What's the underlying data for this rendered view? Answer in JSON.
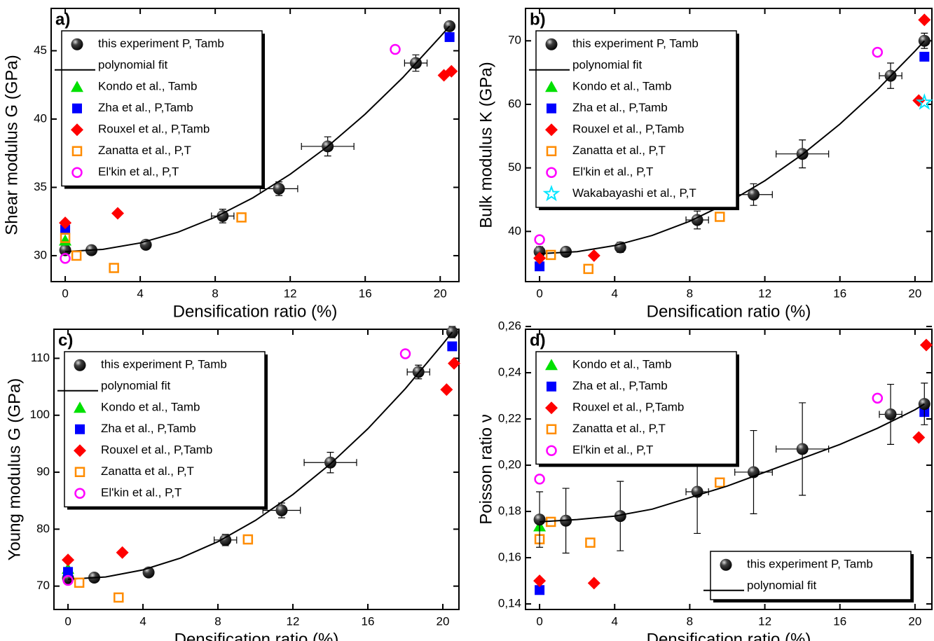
{
  "chart_data": [
    {
      "type": "scatter",
      "title": "a)",
      "xlabel": "Densification ratio (%)",
      "ylabel": "Shear modulus G (GPa)",
      "xlim": [
        -0.75,
        21.0
      ],
      "ylim": [
        28.1,
        48.1
      ],
      "xticks": [
        0,
        4,
        8,
        12,
        16,
        20
      ],
      "yticks": [
        30,
        35,
        40,
        45
      ],
      "legend": "upper left",
      "series": [
        {
          "name": "this experiment P, Tamb",
          "marker": "sphere",
          "color": "#000000",
          "x": [
            0,
            1.4,
            4.3,
            8.4,
            11.4,
            14.0,
            18.7,
            20.5
          ],
          "values": [
            30.4,
            30.4,
            30.8,
            32.9,
            34.9,
            38.0,
            44.1,
            46.8
          ],
          "errors": [
            0.3,
            0.3,
            0.3,
            0.5,
            0.5,
            0.7,
            0.6,
            0.3
          ],
          "xerrors": [
            null,
            null,
            null,
            0.6,
            1.0,
            1.4,
            0.6,
            null
          ]
        },
        {
          "name": "polynomial fit",
          "marker": "line",
          "color": "#000000",
          "x": [
            0,
            2,
            4,
            6,
            8,
            10,
            12,
            14,
            16,
            18,
            20,
            20.5
          ],
          "values": [
            30.3,
            30.46,
            30.93,
            31.71,
            32.82,
            34.23,
            35.96,
            38.0,
            40.36,
            43.03,
            46.02,
            46.8
          ]
        },
        {
          "name": "Kondo et al., Tamb",
          "marker": "triangle",
          "color": "#00e000",
          "x": [
            0
          ],
          "values": [
            31.1
          ]
        },
        {
          "name": "Zha et al., P,Tamb",
          "marker": "square",
          "color": "#0000ff",
          "x": [
            0,
            20.5
          ],
          "values": [
            31.9,
            46.0
          ]
        },
        {
          "name": "Rouxel et al., P,Tamb",
          "marker": "diamond",
          "color": "#ff0000",
          "x": [
            0,
            2.8,
            20.2,
            20.6
          ],
          "values": [
            32.4,
            33.1,
            43.2,
            43.5
          ]
        },
        {
          "name": "Zanatta et al., P,T",
          "marker": "open-square",
          "color": "#ff8c00",
          "x": [
            0,
            0.6,
            2.6,
            9.4
          ],
          "values": [
            31.3,
            30.0,
            29.1,
            32.8
          ]
        },
        {
          "name": "El'kin et al., P,T",
          "marker": "open-circle",
          "color": "#ff00ff",
          "x": [
            0,
            17.6
          ],
          "values": [
            29.8,
            45.1
          ]
        }
      ]
    },
    {
      "type": "scatter",
      "title": "b)",
      "xlabel": "Densification ratio (%)",
      "ylabel": "Bulk modulus K (GPa)",
      "xlim": [
        -0.75,
        20.9
      ],
      "ylim": [
        32.1,
        75.1
      ],
      "xticks": [
        0,
        4,
        8,
        12,
        16,
        20
      ],
      "yticks": [
        40,
        50,
        60,
        70
      ],
      "legend": "upper left",
      "series": [
        {
          "name": "this experiment P, Tamb",
          "marker": "sphere",
          "color": "#000000",
          "x": [
            0,
            1.4,
            4.3,
            8.4,
            11.4,
            14.0,
            18.7,
            20.5
          ],
          "values": [
            36.8,
            36.8,
            37.5,
            41.8,
            45.8,
            52.2,
            64.5,
            70.0
          ],
          "errors": [
            0.8,
            0.6,
            0.8,
            1.4,
            1.7,
            2.2,
            2.0,
            1.2
          ],
          "xerrors": [
            null,
            null,
            null,
            0.6,
            1.0,
            1.4,
            0.6,
            null
          ]
        },
        {
          "name": "polynomial fit",
          "marker": "line",
          "color": "#000000",
          "x": [
            0,
            2,
            4,
            6,
            8,
            10,
            12,
            14,
            16,
            18,
            20,
            20.5
          ],
          "values": [
            36.5,
            36.82,
            37.78,
            39.37,
            41.6,
            44.47,
            47.98,
            52.12,
            56.9,
            62.32,
            68.38,
            70.0
          ]
        },
        {
          "name": "Kondo et al., Tamb",
          "marker": "triangle",
          "color": "#00e000",
          "x": [],
          "values": []
        },
        {
          "name": "Zha et al., P,Tamb",
          "marker": "square",
          "color": "#0000ff",
          "x": [
            0,
            20.5
          ],
          "values": [
            34.5,
            67.5
          ]
        },
        {
          "name": "Rouxel et al., P,Tamb",
          "marker": "diamond",
          "color": "#ff0000",
          "x": [
            0,
            2.9,
            20.2,
            20.5
          ],
          "values": [
            35.8,
            36.2,
            60.6,
            73.3
          ]
        },
        {
          "name": "Zanatta et al., P,T",
          "marker": "open-square",
          "color": "#ff8c00",
          "x": [
            0.6,
            2.6,
            9.6
          ],
          "values": [
            36.3,
            34.1,
            42.3
          ]
        },
        {
          "name": "El'kin et al., P,T",
          "marker": "open-circle",
          "color": "#ff00ff",
          "x": [
            0,
            18.0
          ],
          "values": [
            38.7,
            68.2
          ]
        },
        {
          "name": "Wakabayashi et al., P,T",
          "marker": "star",
          "color": "#00e5ff",
          "x": [
            20.5
          ],
          "values": [
            60.3
          ]
        }
      ]
    },
    {
      "type": "scatter",
      "title": "c)",
      "xlabel": "Densification ratio (%)",
      "ylabel": "Young modulus G (GPa)",
      "xlim": [
        -0.75,
        20.86
      ],
      "ylim": [
        65.9,
        115.1
      ],
      "xticks": [
        0,
        4,
        8,
        12,
        16,
        20
      ],
      "yticks": [
        70,
        80,
        90,
        100,
        110
      ],
      "legend": "upper left",
      "series": [
        {
          "name": "this experiment P, Tamb",
          "marker": "sphere",
          "color": "#000000",
          "x": [
            0,
            1.4,
            4.3,
            8.4,
            11.4,
            14.0,
            18.7,
            20.5
          ],
          "values": [
            71.4,
            71.5,
            72.4,
            78.1,
            83.3,
            91.7,
            107.6,
            114.6
          ],
          "errors": [
            0.8,
            0.6,
            0.6,
            1.0,
            1.3,
            1.8,
            1.2,
            1.0
          ],
          "xerrors": [
            null,
            null,
            null,
            0.6,
            1.0,
            1.4,
            0.6,
            null
          ]
        },
        {
          "name": "polynomial fit",
          "marker": "line",
          "color": "#000000",
          "x": [
            0,
            2,
            4,
            6,
            8,
            10,
            12,
            14,
            16,
            18,
            20,
            20.5
          ],
          "values": [
            71.2,
            71.61,
            72.85,
            74.92,
            77.81,
            81.53,
            86.08,
            91.45,
            97.64,
            104.67,
            112.52,
            114.6
          ]
        },
        {
          "name": "Kondo et al., Tamb",
          "marker": "triangle",
          "color": "#00e000",
          "x": [
            0
          ],
          "values": [
            73.0
          ]
        },
        {
          "name": "Zha et al., P,Tamb",
          "marker": "square",
          "color": "#0000ff",
          "x": [
            0,
            20.5
          ],
          "values": [
            72.5,
            112.1
          ]
        },
        {
          "name": "Rouxel et al., P,Tamb",
          "marker": "diamond",
          "color": "#ff0000",
          "x": [
            0,
            2.9,
            20.2,
            20.6
          ],
          "values": [
            74.6,
            75.9,
            104.5,
            109.1
          ]
        },
        {
          "name": "Zanatta et al., P,T",
          "marker": "open-square",
          "color": "#ff8c00",
          "x": [
            0.6,
            2.7,
            9.6
          ],
          "values": [
            70.6,
            68.0,
            78.2
          ]
        },
        {
          "name": "El'kin et al., P,T",
          "marker": "open-circle",
          "color": "#ff00ff",
          "x": [
            0,
            18.0
          ],
          "values": [
            71.0,
            110.8
          ]
        }
      ]
    },
    {
      "type": "scatter",
      "title": "d)",
      "xlabel": "Densification ratio (%)",
      "ylabel": "Poisson ratio ν",
      "xlim": [
        -0.75,
        20.9
      ],
      "ylim": [
        0.1376,
        0.2588
      ],
      "xticks": [
        0,
        4,
        8,
        12,
        16,
        20
      ],
      "yticks": [
        {
          "value": 0.14,
          "label": "0,14"
        },
        {
          "value": 0.16,
          "label": "0,16"
        },
        {
          "value": 0.18,
          "label": "0,18"
        },
        {
          "value": 0.2,
          "label": "0,20"
        },
        {
          "value": 0.22,
          "label": "0,22"
        },
        {
          "value": 0.24,
          "label": "0,24"
        },
        {
          "value": 0.26,
          "label": "0,26"
        }
      ],
      "legend": "upper left",
      "series": [
        {
          "name": "Kondo et al., Tamb",
          "marker": "triangle",
          "color": "#00e000",
          "x": [
            0
          ],
          "values": [
            0.1735
          ]
        },
        {
          "name": "Zha et al., P,Tamb",
          "marker": "square",
          "color": "#0000ff",
          "x": [
            0,
            20.5
          ],
          "values": [
            0.146,
            0.223
          ]
        },
        {
          "name": "Rouxel et al., P,Tamb",
          "marker": "diamond",
          "color": "#ff0000",
          "x": [
            0,
            2.9,
            20.2,
            20.6
          ],
          "values": [
            0.15,
            0.149,
            0.212,
            0.252
          ]
        },
        {
          "name": "Zanatta et al., P,T",
          "marker": "open-square",
          "color": "#ff8c00",
          "x": [
            0,
            0.6,
            2.7,
            9.6
          ],
          "values": [
            0.168,
            0.1755,
            0.1665,
            0.1925
          ]
        },
        {
          "name": "El'kin et al., P,T",
          "marker": "open-circle",
          "color": "#ff00ff",
          "x": [
            0,
            18.0
          ],
          "values": [
            0.194,
            0.229
          ]
        },
        {
          "name": "this experiment P, Tamb",
          "marker": "sphere",
          "color": "#000000",
          "legend": "lower right",
          "x": [
            0,
            1.4,
            4.3,
            8.4,
            11.4,
            14.0,
            18.7,
            20.5
          ],
          "values": [
            0.1765,
            0.176,
            0.178,
            0.1885,
            0.197,
            0.207,
            0.222,
            0.2265
          ],
          "errors": [
            0.012,
            0.014,
            0.015,
            0.018,
            0.018,
            0.02,
            0.013,
            0.009
          ],
          "xerrors": [
            null,
            null,
            null,
            0.6,
            1.0,
            1.4,
            0.6,
            null
          ]
        },
        {
          "name": "polynomial fit",
          "marker": "line",
          "color": "#000000",
          "legend": "lower right",
          "x": [
            0,
            2,
            4,
            6,
            8,
            10,
            12,
            14,
            16,
            18,
            20,
            20.5
          ],
          "values": [
            0.1755,
            0.1765,
            0.178,
            0.181,
            0.186,
            0.191,
            0.197,
            0.203,
            0.209,
            0.216,
            0.224,
            0.2265
          ]
        }
      ]
    }
  ]
}
